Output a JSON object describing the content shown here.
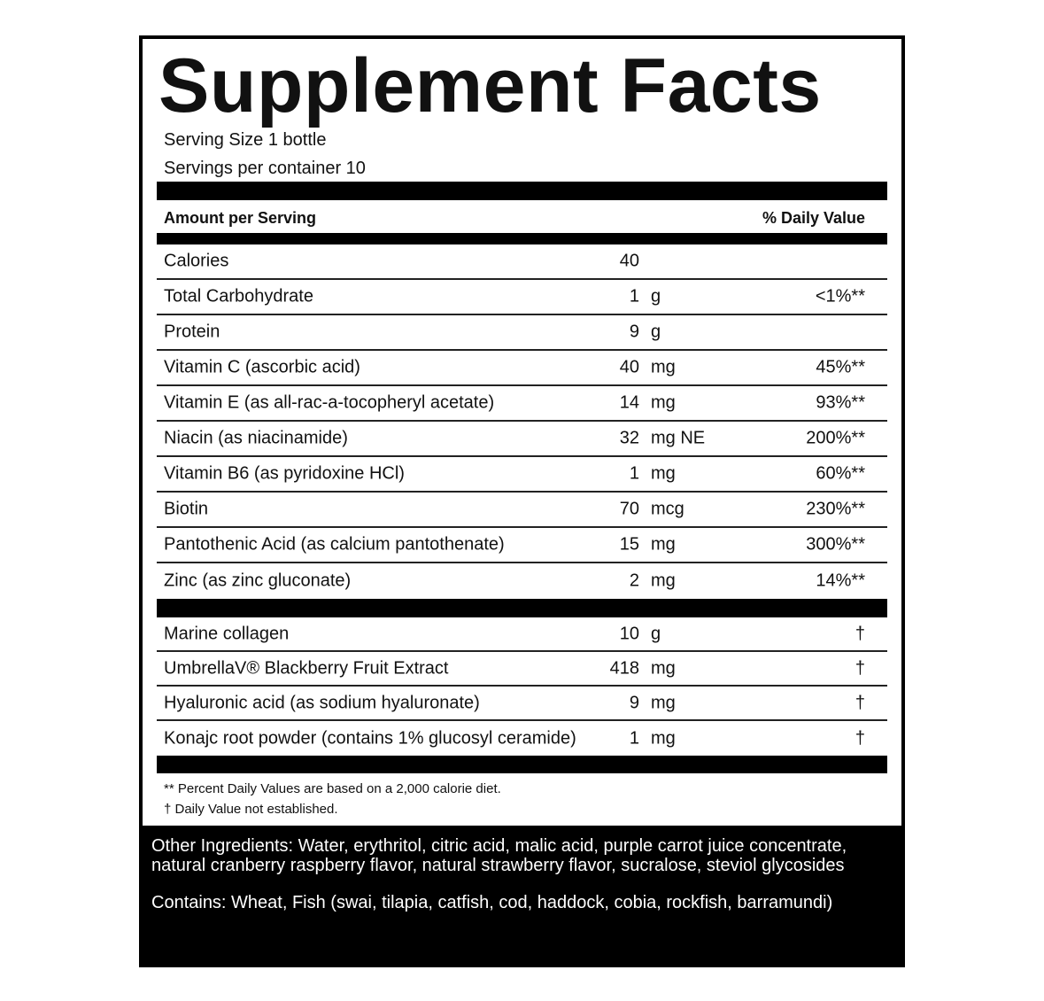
{
  "label": {
    "title": "Supplement Facts",
    "serving_size": "Serving Size 1 bottle",
    "servings_per_container": "Servings per container 10",
    "header": {
      "amount": "Amount per Serving",
      "daily_value": "% Daily Value"
    },
    "nutrients": [
      {
        "name": "Calories",
        "amount": "40",
        "unit": "",
        "dv": ""
      },
      {
        "name": "Total Carbohydrate",
        "amount": "1",
        "unit": "g",
        "dv": "<1%**"
      },
      {
        "name": "Protein",
        "amount": "9",
        "unit": "g",
        "dv": ""
      },
      {
        "name": "Vitamin C (ascorbic acid)",
        "amount": "40",
        "unit": "mg",
        "dv": "45%**"
      },
      {
        "name": "Vitamin E (as all-rac-a-tocopheryl acetate)",
        "amount": "14",
        "unit": "mg",
        "dv": "93%**"
      },
      {
        "name": "Niacin (as niacinamide)",
        "amount": "32",
        "unit": "mg NE",
        "dv": "200%**"
      },
      {
        "name": "Vitamin B6 (as pyridoxine HCl)",
        "amount": "1",
        "unit": "mg",
        "dv": "60%**"
      },
      {
        "name": "Biotin",
        "amount": "70",
        "unit": "mcg",
        "dv": "230%**"
      },
      {
        "name": "Pantothenic Acid (as calcium pantothenate)",
        "amount": "15",
        "unit": "mg",
        "dv": "300%**"
      },
      {
        "name": "Zinc (as zinc gluconate)",
        "amount": "2",
        "unit": "mg",
        "dv": "14%**"
      }
    ],
    "other": [
      {
        "name": "Marine collagen",
        "amount": "10",
        "unit": "g",
        "dv": "†"
      },
      {
        "name": "UmbrellaV® Blackberry Fruit Extract",
        "amount": "418",
        "unit": "mg",
        "dv": "†"
      },
      {
        "name": "Hyaluronic acid (as sodium hyaluronate)",
        "amount": "9",
        "unit": "mg",
        "dv": "†"
      },
      {
        "name": "Konajc root powder (contains 1% glucosyl ceramide)",
        "amount": "1",
        "unit": "mg",
        "dv": "†"
      }
    ],
    "footnotes": [
      "** Percent Daily Values are based on a 2,000 calorie diet.",
      "† Daily Value not established."
    ],
    "other_ingredients": "Other Ingredients: Water, erythritol, citric acid, malic acid, purple carrot juice concentrate, natural cranberry raspberry flavor, natural strawberry flavor, sucralose, steviol glycosides",
    "contains": "Contains: Wheat, Fish (swai, tilapia, catfish, cod, haddock, cobia, rockfish, barramundi)"
  }
}
